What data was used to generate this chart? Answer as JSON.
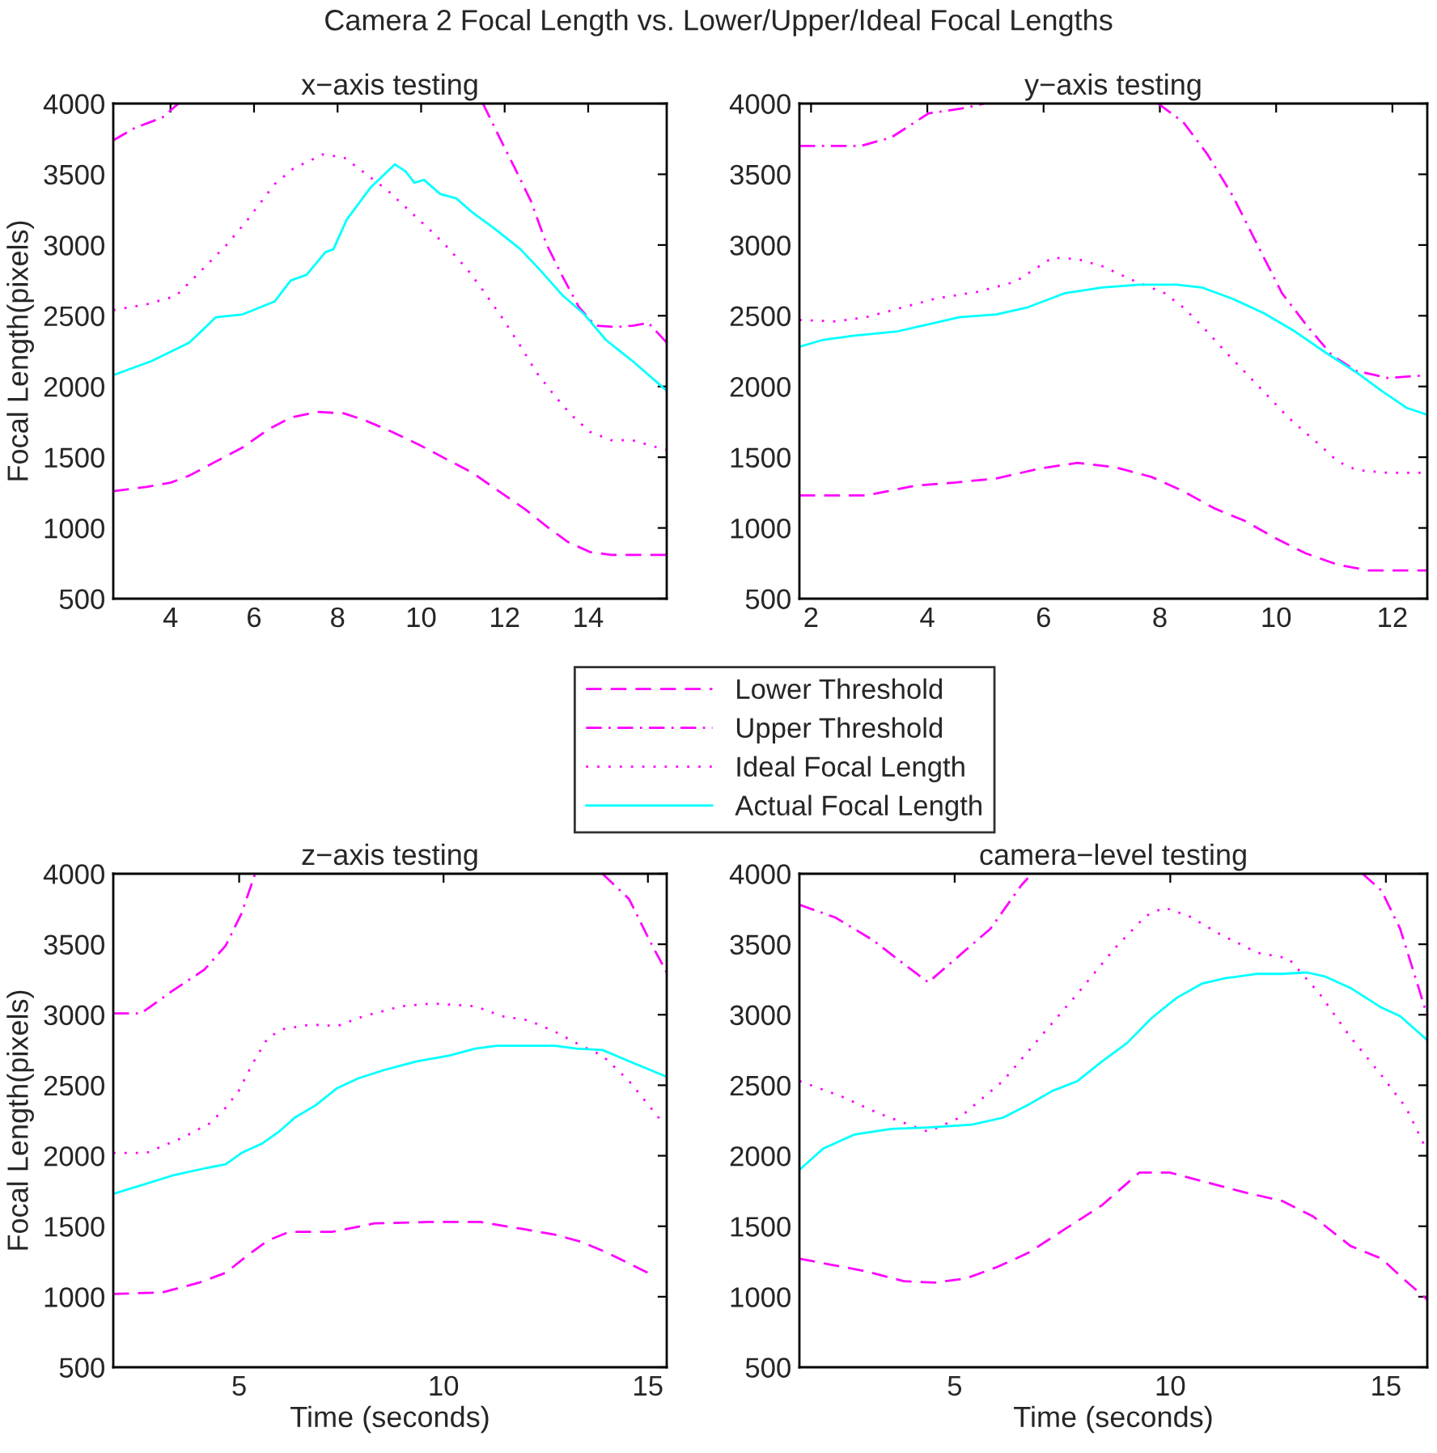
{
  "chart_data": [
    {
      "type": "line",
      "title": "x−axis testing",
      "ylabel": "Focal Length(pixels)",
      "annotations": [
        "Camera 2 Focal Length vs. Lower/Upper/Ideal Focal Lengths"
      ],
      "legend": "center",
      "grid": false,
      "marker": "none",
      "xlim": [
        2.63,
        15.88
      ],
      "xticks": [
        4,
        6,
        8,
        10,
        12,
        14
      ],
      "ylim": [
        500,
        4000
      ],
      "yticks": [
        500,
        1000,
        1500,
        2000,
        2500,
        3000,
        3500,
        4000
      ],
      "series": [
        {
          "name": "Lower Threshold",
          "color": "#ff00ff",
          "line_style": "dashed",
          "x": [
            2.63,
            3.42,
            4.0,
            4.45,
            5.09,
            5.73,
            6.36,
            6.88,
            7.52,
            8.15,
            8.66,
            9.3,
            9.94,
            10.58,
            11.23,
            11.86,
            12.5,
            13.01,
            13.52,
            14.04,
            14.55,
            15.06,
            15.88
          ],
          "values": [
            1260,
            1290,
            1320,
            1370,
            1470,
            1570,
            1700,
            1780,
            1820,
            1810,
            1760,
            1680,
            1590,
            1490,
            1390,
            1260,
            1130,
            1010,
            900,
            830,
            810,
            810,
            810
          ]
        },
        {
          "name": "Upper Threshold",
          "color": "#ff00ff",
          "line_style": "dashdot",
          "x": [
            2.63,
            3.16,
            3.8,
            4.19,
            8.0,
            11.48,
            11.86,
            12.25,
            12.63,
            13.01,
            13.4,
            13.78,
            14.17,
            14.68,
            15.06,
            15.44,
            15.88
          ],
          "values": [
            3740,
            3830,
            3900,
            4000,
            null,
            4000,
            3770,
            3540,
            3310,
            3000,
            2770,
            2560,
            2430,
            2420,
            2430,
            2450,
            2310
          ]
        },
        {
          "name": "Ideal Focal Length",
          "color": "#ff00ff",
          "line_style": "dotted",
          "x": [
            2.63,
            3.42,
            4.13,
            4.64,
            5.34,
            5.85,
            6.49,
            6.94,
            7.64,
            8.15,
            8.6,
            9.18,
            9.69,
            10.2,
            10.58,
            11.1,
            11.48,
            11.93,
            12.37,
            12.76,
            13.21,
            13.59,
            14.04,
            14.55,
            15.06,
            15.88
          ],
          "values": [
            2540,
            2580,
            2640,
            2790,
            3000,
            3180,
            3430,
            3540,
            3640,
            3620,
            3520,
            3390,
            3250,
            3110,
            3000,
            2830,
            2680,
            2490,
            2290,
            2100,
            1930,
            1800,
            1680,
            1620,
            1620,
            1550
          ]
        },
        {
          "name": "Actual Focal Length",
          "color": "#00ffff",
          "line_style": "solid",
          "x": [
            2.63,
            3.55,
            4.45,
            5.09,
            5.73,
            6.49,
            6.88,
            7.26,
            7.71,
            7.9,
            8.22,
            8.8,
            9.12,
            9.37,
            9.63,
            9.84,
            10.07,
            10.46,
            10.84,
            11.23,
            11.74,
            12.38,
            12.89,
            13.4,
            13.91,
            14.42,
            15.06,
            15.88
          ],
          "values": [
            2080,
            2180,
            2310,
            2490,
            2510,
            2600,
            2750,
            2790,
            2950,
            2970,
            3180,
            3410,
            3500,
            3570,
            3520,
            3440,
            3460,
            3360,
            3330,
            3230,
            3120,
            2970,
            2810,
            2640,
            2510,
            2330,
            2180,
            1970
          ]
        }
      ]
    },
    {
      "type": "line",
      "title": "y−axis testing",
      "grid": false,
      "marker": "none",
      "xlim": [
        1.8,
        12.6
      ],
      "xticks": [
        2,
        4,
        6,
        8,
        10,
        12
      ],
      "ylim": [
        500,
        4000
      ],
      "yticks": [
        500,
        1000,
        1500,
        2000,
        2500,
        3000,
        3500,
        4000
      ],
      "series": [
        {
          "color": "#ff00ff",
          "line_style": "dashed",
          "x": [
            1.8,
            2.95,
            3.81,
            4.45,
            5.19,
            5.94,
            6.58,
            7.22,
            7.86,
            8.4,
            8.93,
            9.46,
            9.98,
            10.51,
            11.06,
            11.59,
            12.6
          ],
          "values": [
            1230,
            1230,
            1300,
            1320,
            1350,
            1420,
            1460,
            1430,
            1360,
            1260,
            1140,
            1050,
            930,
            820,
            740,
            700,
            700
          ]
        },
        {
          "color": "#ff00ff",
          "line_style": "dashdot",
          "x": [
            1.8,
            2.85,
            3.38,
            4.02,
            4.66,
            4.98,
            6.5,
            7.97,
            8.4,
            8.82,
            9.25,
            9.68,
            10.1,
            10.53,
            10.96,
            11.38,
            11.92,
            12.6
          ],
          "values": [
            3700,
            3700,
            3760,
            3930,
            3970,
            4000,
            null,
            4000,
            3870,
            3640,
            3350,
            3000,
            2660,
            2430,
            2220,
            2110,
            2060,
            2080
          ]
        },
        {
          "color": "#ff00ff",
          "line_style": "dotted",
          "x": [
            1.8,
            2.42,
            2.95,
            3.59,
            4.13,
            4.87,
            5.51,
            6.15,
            6.58,
            7.01,
            7.54,
            8.08,
            8.4,
            8.72,
            9.14,
            9.68,
            10.21,
            10.74,
            11.06,
            11.38,
            11.92,
            12.6
          ],
          "values": [
            2470,
            2460,
            2490,
            2560,
            2620,
            2670,
            2740,
            2910,
            2900,
            2850,
            2750,
            2660,
            2560,
            2430,
            2240,
            2010,
            1780,
            1590,
            1470,
            1410,
            1390,
            1390
          ]
        },
        {
          "color": "#00ffff",
          "line_style": "solid",
          "x": [
            1.8,
            2.21,
            2.74,
            3.49,
            4.02,
            4.55,
            5.19,
            5.73,
            6.37,
            7.01,
            7.65,
            8.29,
            8.72,
            9.25,
            9.78,
            10.32,
            10.85,
            11.38,
            11.81,
            12.24,
            12.6
          ],
          "values": [
            2280,
            2330,
            2360,
            2390,
            2440,
            2490,
            2510,
            2560,
            2660,
            2700,
            2720,
            2720,
            2700,
            2620,
            2520,
            2390,
            2240,
            2100,
            1970,
            1850,
            1800
          ]
        }
      ]
    },
    {
      "type": "line",
      "title": "z−axis testing",
      "xlabel": "Time (seconds)",
      "ylabel": "Focal Length(pixels)",
      "grid": false,
      "marker": "none",
      "xlim": [
        1.92,
        15.46
      ],
      "xticks": [
        5,
        10,
        15
      ],
      "ylim": [
        500,
        4000
      ],
      "yticks": [
        500,
        1000,
        1500,
        2000,
        2500,
        3000,
        3500,
        4000
      ],
      "series": [
        {
          "color": "#ff00ff",
          "line_style": "dashed",
          "x": [
            1.92,
            3.11,
            4.02,
            4.67,
            5.19,
            5.71,
            6.23,
            7.27,
            8.31,
            9.61,
            10.91,
            11.95,
            12.73,
            13.37,
            14.02,
            15.0
          ],
          "values": [
            1020,
            1030,
            1100,
            1170,
            1290,
            1400,
            1460,
            1460,
            1520,
            1530,
            1530,
            1480,
            1440,
            1390,
            1310,
            1170
          ]
        },
        {
          "color": "#ff00ff",
          "line_style": "dashdot",
          "x": [
            1.92,
            2.6,
            3.37,
            4.15,
            4.67,
            5.06,
            5.39,
            9.5,
            13.89,
            14.54,
            15.07,
            15.46
          ],
          "values": [
            3010,
            3010,
            3170,
            3320,
            3490,
            3720,
            4000,
            null,
            4000,
            3820,
            3510,
            3300
          ]
        },
        {
          "color": "#ff00ff",
          "line_style": "dotted",
          "x": [
            1.92,
            2.73,
            3.63,
            4.28,
            4.67,
            4.99,
            5.32,
            5.71,
            6.1,
            6.75,
            7.4,
            8.05,
            8.96,
            9.74,
            10.78,
            11.43,
            12.08,
            12.73,
            13.37,
            13.89,
            14.54,
            15.32
          ],
          "values": [
            2020,
            2020,
            2130,
            2230,
            2340,
            2460,
            2650,
            2840,
            2900,
            2930,
            2920,
            2990,
            3060,
            3080,
            3060,
            2990,
            2960,
            2880,
            2780,
            2710,
            2530,
            2250
          ]
        },
        {
          "color": "#00ffff",
          "line_style": "solid",
          "x": [
            1.92,
            2.6,
            3.37,
            4.15,
            4.67,
            5.06,
            5.58,
            5.97,
            6.36,
            6.88,
            7.4,
            7.92,
            8.57,
            9.35,
            10.13,
            10.78,
            11.3,
            12.21,
            12.73,
            13.25,
            13.89,
            14.54,
            15.46
          ],
          "values": [
            1730,
            1790,
            1860,
            1910,
            1940,
            2020,
            2090,
            2170,
            2270,
            2360,
            2480,
            2550,
            2610,
            2670,
            2710,
            2760,
            2780,
            2780,
            2780,
            2760,
            2750,
            2670,
            2560
          ]
        }
      ]
    },
    {
      "type": "line",
      "title": "camera−level testing",
      "xlabel": "Time (seconds)",
      "grid": false,
      "marker": "none",
      "xlim": [
        1.4,
        15.96
      ],
      "xticks": [
        5,
        10,
        15
      ],
      "ylim": [
        500,
        4000
      ],
      "yticks": [
        500,
        1000,
        1500,
        2000,
        2500,
        3000,
        3500,
        4000
      ],
      "series": [
        {
          "color": "#ff00ff",
          "line_style": "dashed",
          "x": [
            1.4,
            2.09,
            2.95,
            3.82,
            4.54,
            5.26,
            5.98,
            6.7,
            7.56,
            8.42,
            9.28,
            10.0,
            10.86,
            11.73,
            12.59,
            13.31,
            14.18,
            14.9,
            15.47,
            15.96
          ],
          "values": [
            1270,
            1230,
            1180,
            1110,
            1100,
            1130,
            1210,
            1310,
            1480,
            1650,
            1880,
            1880,
            1810,
            1740,
            1680,
            1570,
            1360,
            1270,
            1110,
            980
          ]
        },
        {
          "color": "#ff00ff",
          "line_style": "dashdot",
          "x": [
            1.4,
            2.23,
            3.1,
            3.82,
            4.39,
            5.11,
            5.83,
            6.55,
            6.7,
            10.5,
            14.46,
            14.9,
            15.33,
            15.76,
            15.96
          ],
          "values": [
            3780,
            3690,
            3530,
            3360,
            3230,
            3420,
            3610,
            3920,
            3970,
            null,
            4000,
            3880,
            3610,
            3190,
            2990
          ]
        },
        {
          "color": "#ff00ff",
          "line_style": "dotted",
          "x": [
            1.4,
            2.38,
            3.24,
            4.39,
            5.11,
            6.12,
            6.98,
            7.85,
            8.71,
            9.43,
            9.86,
            10.43,
            11.16,
            12.02,
            12.74,
            13.46,
            14.18,
            14.9,
            15.47,
            15.9
          ],
          "values": [
            2530,
            2420,
            2300,
            2170,
            2270,
            2530,
            2840,
            3150,
            3470,
            3700,
            3760,
            3700,
            3570,
            3440,
            3400,
            3150,
            2840,
            2570,
            2340,
            2070
          ]
        },
        {
          "color": "#00ffff",
          "line_style": "solid",
          "x": [
            1.4,
            1.95,
            2.67,
            3.53,
            4.39,
            5.4,
            6.12,
            6.7,
            7.27,
            7.85,
            8.42,
            9.0,
            9.58,
            10.15,
            10.73,
            11.3,
            12.02,
            12.59,
            13.17,
            13.6,
            14.18,
            14.9,
            15.33,
            15.96
          ],
          "values": [
            1900,
            2050,
            2150,
            2190,
            2200,
            2220,
            2270,
            2360,
            2460,
            2530,
            2670,
            2800,
            2980,
            3120,
            3220,
            3260,
            3290,
            3290,
            3300,
            3270,
            3190,
            3050,
            2990,
            2820
          ]
        }
      ]
    }
  ]
}
